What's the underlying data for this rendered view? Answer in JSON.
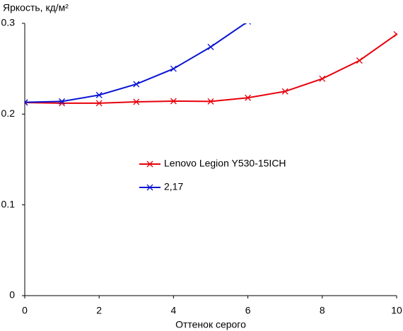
{
  "chart_data": {
    "type": "line",
    "y_label": "Яркость, кд/м²",
    "x_label": "Оттенок серого",
    "x": [
      0,
      1,
      2,
      3,
      4,
      5,
      6,
      7,
      8,
      9,
      10
    ],
    "series": [
      {
        "name": "Lenovo Legion Y530-15ICH",
        "color": "#e8000b",
        "values": [
          0.2127,
          0.212,
          0.212,
          0.2135,
          0.2143,
          0.214,
          0.218,
          0.225,
          0.239,
          0.259,
          0.288
        ]
      },
      {
        "name": "2,17",
        "color": "#0a14d2",
        "values": [
          0.213,
          0.214,
          0.221,
          0.233,
          0.25,
          0.274,
          0.302,
          null,
          null,
          null,
          null
        ]
      }
    ],
    "xlim": [
      0,
      10
    ],
    "xticks": [
      0,
      2,
      4,
      6,
      8,
      10
    ],
    "ylim": [
      0,
      0.3
    ],
    "yticks": [
      0,
      0.1,
      0.2,
      0.3
    ],
    "legend": "center"
  }
}
